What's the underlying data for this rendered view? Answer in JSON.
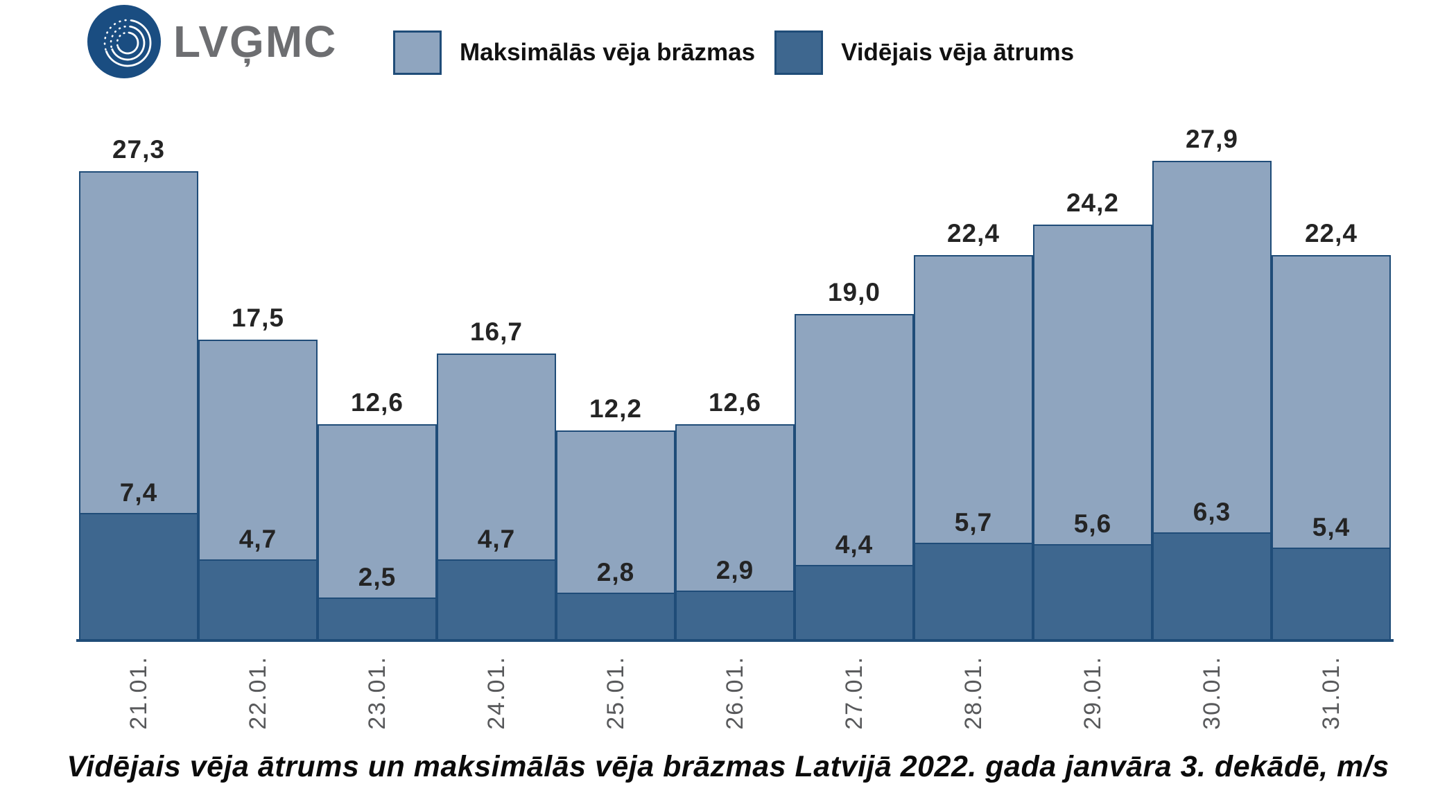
{
  "header": {
    "logo_text": "LVĢMC",
    "logo_circle_color": "#1A4D81",
    "logo_text_color": "#6D6E71"
  },
  "legend": {
    "position": "top",
    "items": [
      {
        "label": "Maksimālās vēja brāzmas",
        "swatch_color": "#8FA5BF"
      },
      {
        "label": "Vidējais vēja ātrums",
        "swatch_color": "#3E678F"
      }
    ],
    "swatch_border_color": "#1F4C78"
  },
  "chart_data": {
    "type": "bar",
    "title": "Vidējais vēja ātrums un maksimālās vēja brāzmas Latvijā 2022. gada janvāra 3. dekādē, m/s",
    "unit": "m/s",
    "categories": [
      "21.01.",
      "22.01.",
      "23.01.",
      "24.01.",
      "25.01.",
      "26.01.",
      "27.01.",
      "28.01.",
      "29.01.",
      "30.01.",
      "31.01."
    ],
    "series": [
      {
        "name": "Maksimālās vēja brāzmas",
        "color": "#8FA5BF",
        "values": [
          27.3,
          17.5,
          12.6,
          16.7,
          12.2,
          12.6,
          19.0,
          22.4,
          24.2,
          27.9,
          22.4
        ],
        "value_labels": [
          "27,3",
          "17,5",
          "12,6",
          "16,7",
          "12,2",
          "12,6",
          "19,0",
          "22,4",
          "24,2",
          "27,9",
          "22,4"
        ]
      },
      {
        "name": "Vidējais vēja ātrums",
        "color": "#3E678F",
        "values": [
          7.4,
          4.7,
          2.5,
          4.7,
          2.8,
          2.9,
          4.4,
          5.7,
          5.6,
          6.3,
          5.4
        ],
        "value_labels": [
          "7,4",
          "4,7",
          "2,5",
          "4,7",
          "2,8",
          "2,9",
          "4,4",
          "5,7",
          "5,6",
          "6,3",
          "5,4"
        ]
      }
    ],
    "axis": {
      "ylim": [
        0,
        31
      ],
      "grid": false,
      "baseline_color": "#1F4C78",
      "tick_label_color": "#58595B",
      "value_label_color": "#242424"
    }
  }
}
